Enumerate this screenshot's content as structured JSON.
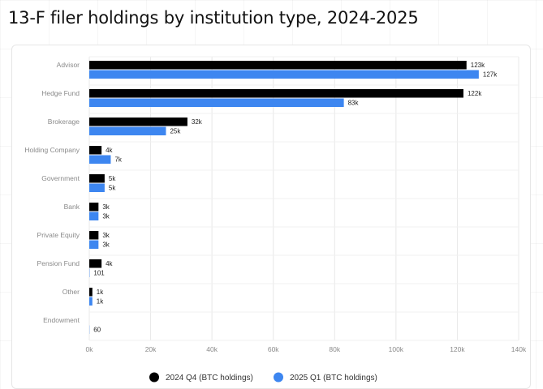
{
  "title": "13-F filer holdings by institution type, 2024-2025",
  "colors": {
    "series_2024": "#000000",
    "series_2025": "#3d86f0",
    "grid": "#e8e8e8",
    "axis_text": "#8a8a8a"
  },
  "chart_data": {
    "type": "bar",
    "orientation": "horizontal",
    "title": "",
    "xlabel": "",
    "ylabel": "",
    "categories": [
      "Advisor",
      "Hedge Fund",
      "Brokerage",
      "Holding Company",
      "Government",
      "Bank",
      "Private Equity",
      "Pension Fund",
      "Other",
      "Endowment"
    ],
    "series": [
      {
        "name": "2024 Q4 (BTC holdings)",
        "color": "#000000",
        "values": [
          123000,
          122000,
          32000,
          4000,
          5000,
          3000,
          3000,
          4000,
          1000,
          0
        ],
        "labels": [
          "123k",
          "122k",
          "32k",
          "4k",
          "5k",
          "3k",
          "3k",
          "4k",
          "1k",
          ""
        ]
      },
      {
        "name": "2025 Q1 (BTC holdings)",
        "color": "#3d86f0",
        "values": [
          127000,
          83000,
          25000,
          7000,
          5000,
          3000,
          3000,
          101,
          1000,
          60
        ],
        "labels": [
          "127k",
          "83k",
          "25k",
          "7k",
          "5k",
          "3k",
          "3k",
          "101",
          "1k",
          "60"
        ]
      }
    ],
    "xlim": [
      0,
      140000
    ],
    "x_ticks": [
      0,
      20000,
      40000,
      60000,
      80000,
      100000,
      120000,
      140000
    ],
    "x_tick_labels": [
      "0k",
      "20k",
      "40k",
      "60k",
      "80k",
      "100k",
      "120k",
      "140k"
    ],
    "grid": true,
    "legend_position": "bottom"
  }
}
